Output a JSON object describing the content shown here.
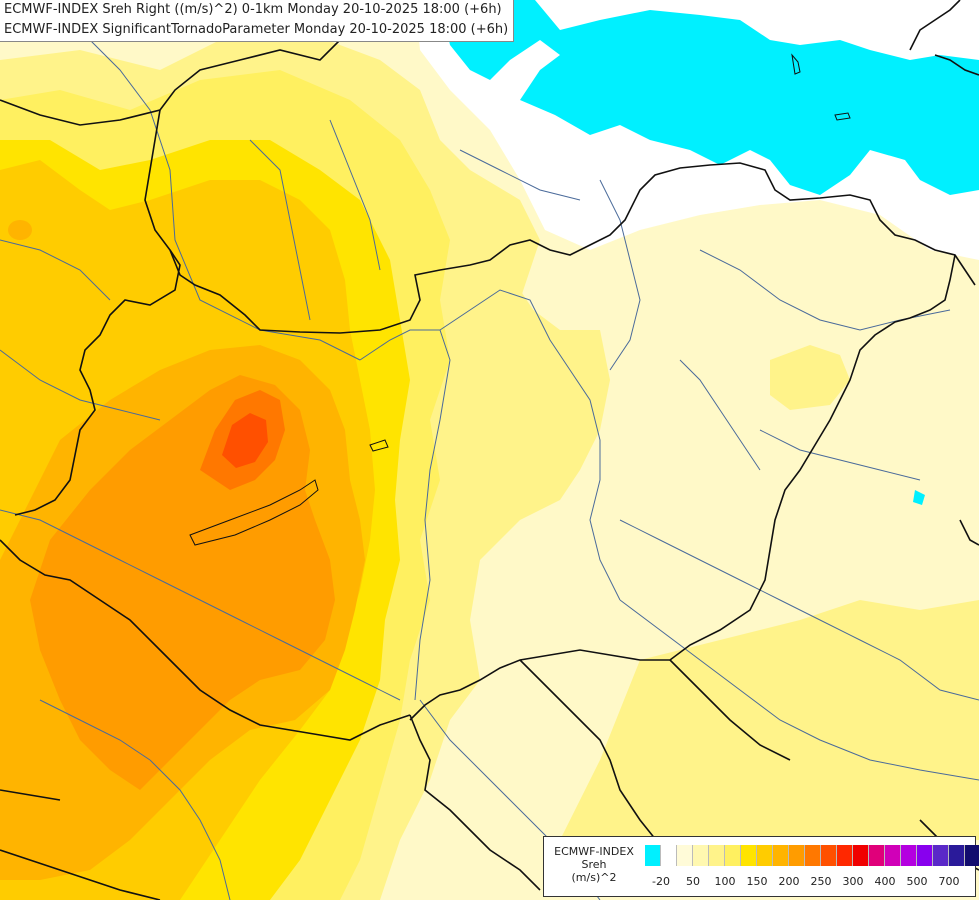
{
  "title": {
    "line1": "ECMWF-INDEX Sreh Right ((m/s)^2) 0-1km Monday 20-10-2025 18:00 (+6h)",
    "line2": "ECMWF-INDEX SignificantTornadoParameter Monday 20-10-2025 18:00 (+6h)"
  },
  "legend": {
    "model": "ECMWF-INDEX",
    "variable": "Sreh",
    "unit": "(m/s)^2",
    "colors": [
      "#00f0ff",
      "#ffffff",
      "#fffbd8",
      "#fff8b0",
      "#fff38a",
      "#fff060",
      "#ffe400",
      "#ffcc00",
      "#ffb400",
      "#ff9c00",
      "#ff7800",
      "#ff5000",
      "#ff2800",
      "#f00000",
      "#e0007a",
      "#d000b8",
      "#b400e0",
      "#8800ee",
      "#5a28c8",
      "#2a1a9a",
      "#120c6e"
    ],
    "ticks": [
      {
        "label": "-20",
        "pos": 1
      },
      {
        "label": "50",
        "pos": 3
      },
      {
        "label": "100",
        "pos": 5
      },
      {
        "label": "150",
        "pos": 7
      },
      {
        "label": "200",
        "pos": 9
      },
      {
        "label": "250",
        "pos": 11
      },
      {
        "label": "300",
        "pos": 13
      },
      {
        "label": "400",
        "pos": 15
      },
      {
        "label": "500",
        "pos": 17
      },
      {
        "label": "700",
        "pos": 19
      }
    ]
  }
}
